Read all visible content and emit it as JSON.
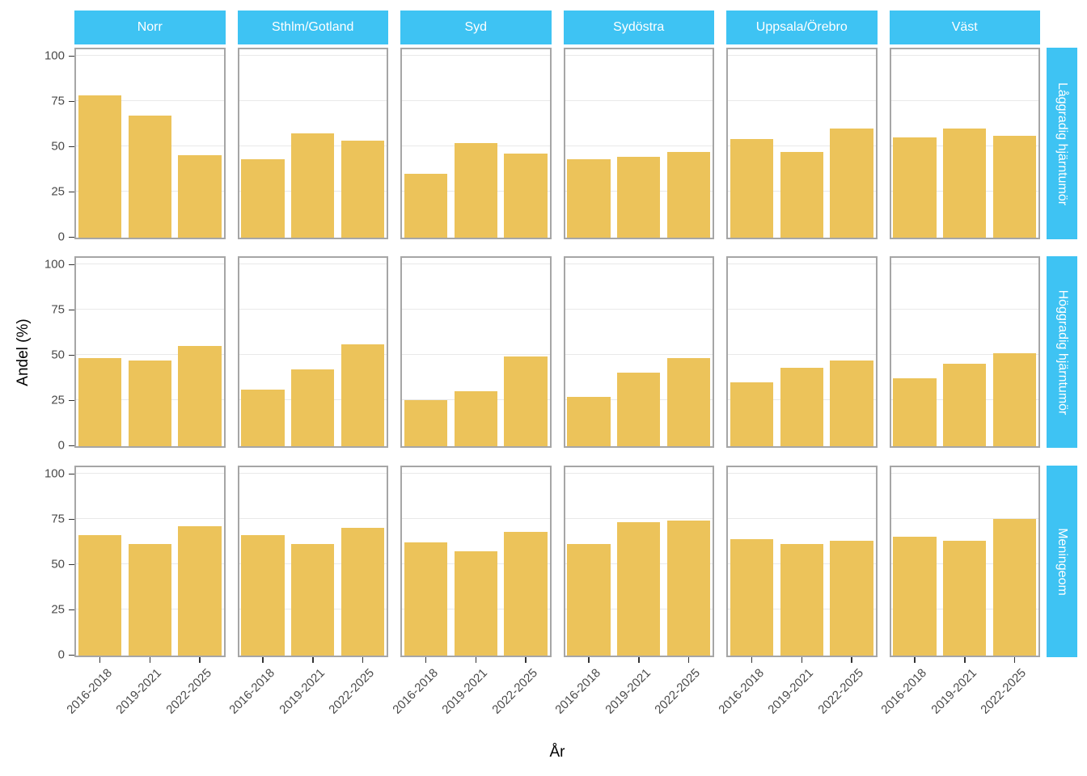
{
  "chart_data": {
    "type": "bar",
    "title": "",
    "xlabel": "År",
    "ylabel": "Andel (%)",
    "ylim": [
      0,
      100
    ],
    "yticks": [
      0,
      25,
      50,
      75,
      100
    ],
    "categories": [
      "2016-2018",
      "2019-2021",
      "2022-2025"
    ],
    "facet_columns": [
      "Norr",
      "Sthlm/Gotland",
      "Syd",
      "Sydöstra",
      "Uppsala/Örebro",
      "Väst"
    ],
    "facet_rows": [
      "Låggradig hjärntumör",
      "Höggradig hjärntumör",
      "Meningeom"
    ],
    "grid": "major-horizontal",
    "legend": "none",
    "values": [
      [
        [
          78,
          67,
          45
        ],
        [
          43,
          57,
          53
        ],
        [
          35,
          52,
          46
        ],
        [
          43,
          44,
          47
        ],
        [
          54,
          47,
          60
        ],
        [
          55,
          60,
          56
        ]
      ],
      [
        [
          48,
          47,
          55
        ],
        [
          31,
          42,
          56
        ],
        [
          25,
          30,
          49
        ],
        [
          27,
          40,
          48
        ],
        [
          35,
          43,
          47
        ],
        [
          37,
          45,
          51
        ]
      ],
      [
        [
          66,
          61,
          71
        ],
        [
          66,
          61,
          70
        ],
        [
          62,
          57,
          68
        ],
        [
          61,
          73,
          74
        ],
        [
          64,
          61,
          63
        ],
        [
          65,
          63,
          75
        ]
      ]
    ]
  },
  "colors": {
    "bar": "#ECC35A",
    "strip": "#3EC3F3",
    "strip_text": "#FFFFFF",
    "gridline": "#E9E9E9",
    "panel_border": "#A6A6A6",
    "axis_text": "#4A4A4A",
    "tick_mark": "#333333",
    "background": "#FFFFFF"
  }
}
